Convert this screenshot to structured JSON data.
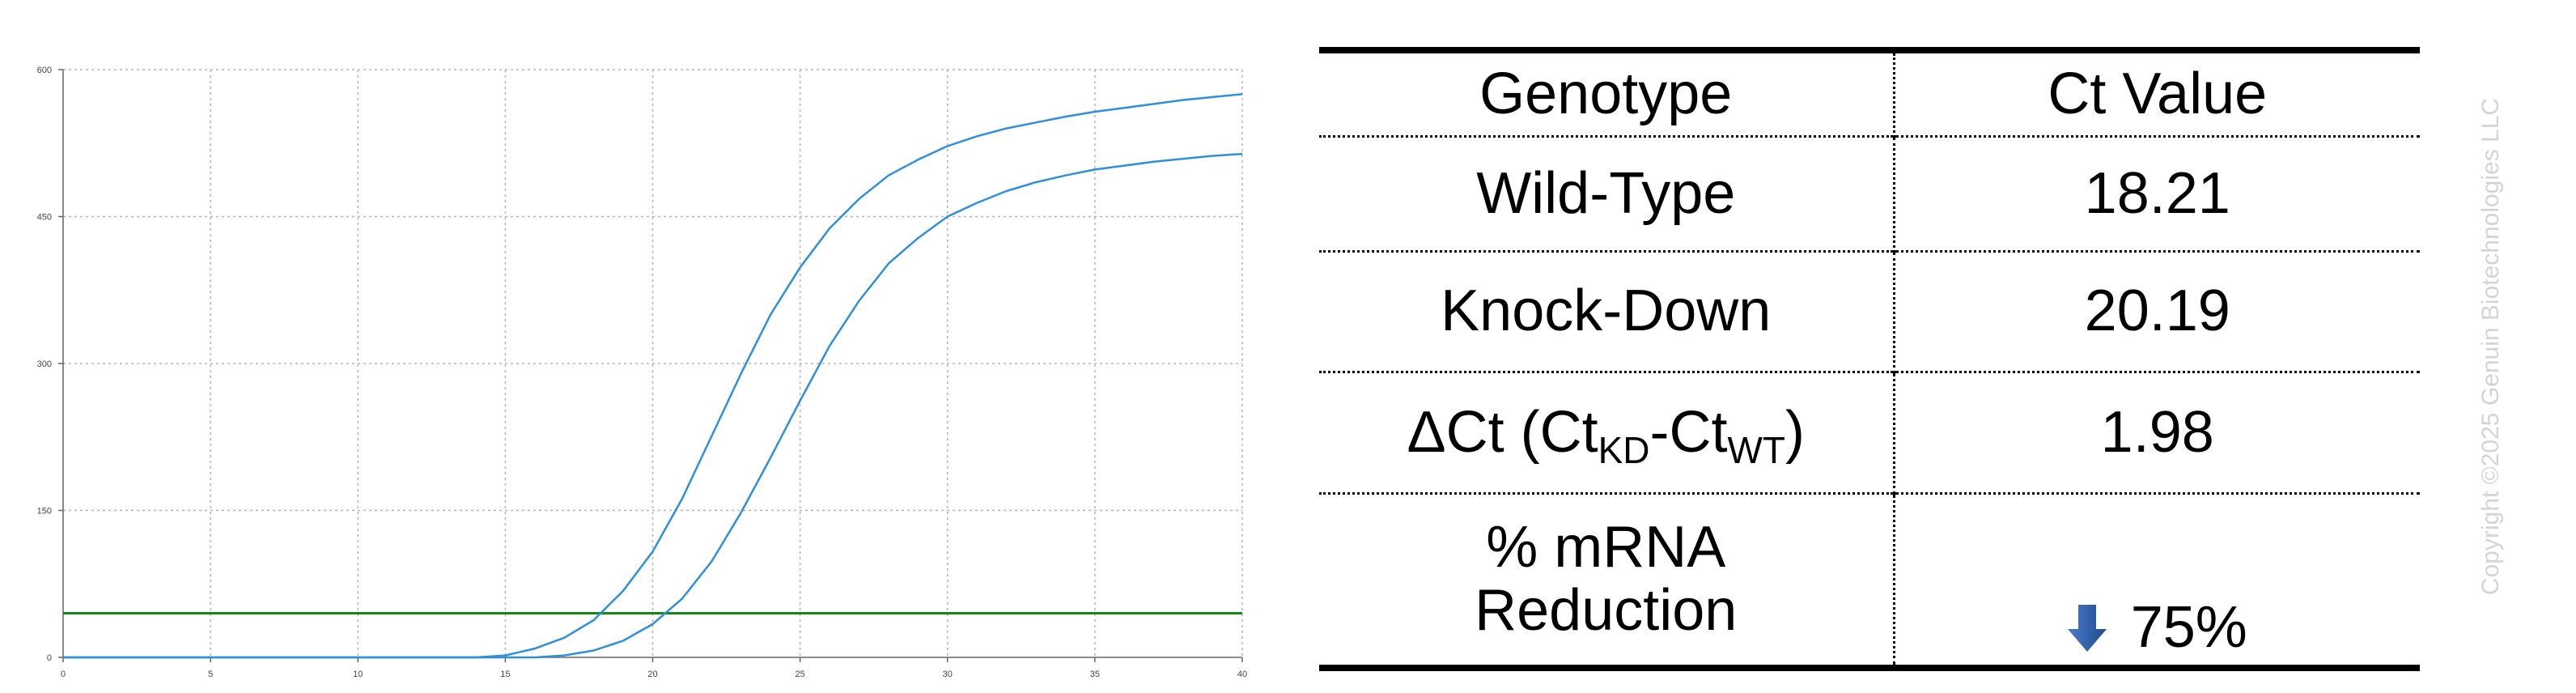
{
  "chart_data": {
    "type": "line",
    "x_ticks": [
      "0",
      "5",
      "10",
      "15",
      "20",
      "25",
      "30",
      "35",
      "40"
    ],
    "y_ticks": [
      "0",
      "150",
      "300",
      "450",
      "600"
    ],
    "xlim": [
      0,
      40
    ],
    "ylim": [
      0,
      600
    ],
    "grid": true,
    "series": [
      {
        "color": "#2e8fe0",
        "x": [
          0,
          1,
          2,
          3,
          4,
          5,
          6,
          7,
          8,
          9,
          10,
          11,
          12,
          13,
          14,
          15,
          16,
          17,
          18,
          19,
          20,
          21,
          22,
          23,
          24,
          25,
          26,
          27,
          28,
          29,
          30,
          31,
          32,
          33,
          34,
          35,
          36,
          37,
          38,
          39,
          40
        ],
        "values": [
          0,
          0,
          0,
          0,
          0,
          0,
          0,
          0,
          0,
          0,
          0,
          0,
          0,
          0,
          0,
          2,
          9,
          20,
          38,
          68,
          108,
          162,
          226,
          290,
          350,
          398,
          438,
          468,
          492,
          508,
          522,
          532,
          540,
          546,
          552,
          557,
          561,
          565,
          569,
          572,
          575
        ]
      },
      {
        "color": "#2e8fe0",
        "x": [
          0,
          1,
          2,
          3,
          4,
          5,
          6,
          7,
          8,
          9,
          10,
          11,
          12,
          13,
          14,
          15,
          16,
          17,
          18,
          19,
          20,
          21,
          22,
          23,
          24,
          25,
          26,
          27,
          28,
          29,
          30,
          31,
          32,
          33,
          34,
          35,
          36,
          37,
          38,
          39,
          40
        ],
        "values": [
          0,
          0,
          0,
          0,
          0,
          0,
          0,
          0,
          0,
          0,
          0,
          0,
          0,
          0,
          0,
          0,
          0,
          2,
          7,
          17,
          34,
          60,
          98,
          148,
          204,
          262,
          318,
          364,
          402,
          428,
          450,
          464,
          476,
          485,
          492,
          498,
          502,
          506,
          509,
          512,
          514
        ]
      }
    ],
    "threshold": {
      "value": 45,
      "color": "#108a10"
    }
  },
  "table": {
    "headers": [
      "Genotype",
      "Ct Value"
    ],
    "rows": [
      {
        "label": "Wild-Type",
        "value": "18.21"
      },
      {
        "label": "Knock-Down",
        "value": "20.19"
      },
      {
        "label_main": "ΔCt (Ct",
        "label_sub1": "KD",
        "label_mid": "-Ct",
        "label_sub2": "WT",
        "label_end": ")",
        "value": "1.98"
      },
      {
        "label_line1": "% mRNA",
        "label_line2": "Reduction",
        "value": "75%",
        "icon": "down-arrow-icon"
      }
    ]
  },
  "copyright": "Copyright ©2025 Genuin Biotechnologies LLC",
  "colors": {
    "curve": "#2e8fe0",
    "threshold": "#108a10",
    "grid": "#b5b5b5",
    "arrow": "#2f5ea8"
  }
}
